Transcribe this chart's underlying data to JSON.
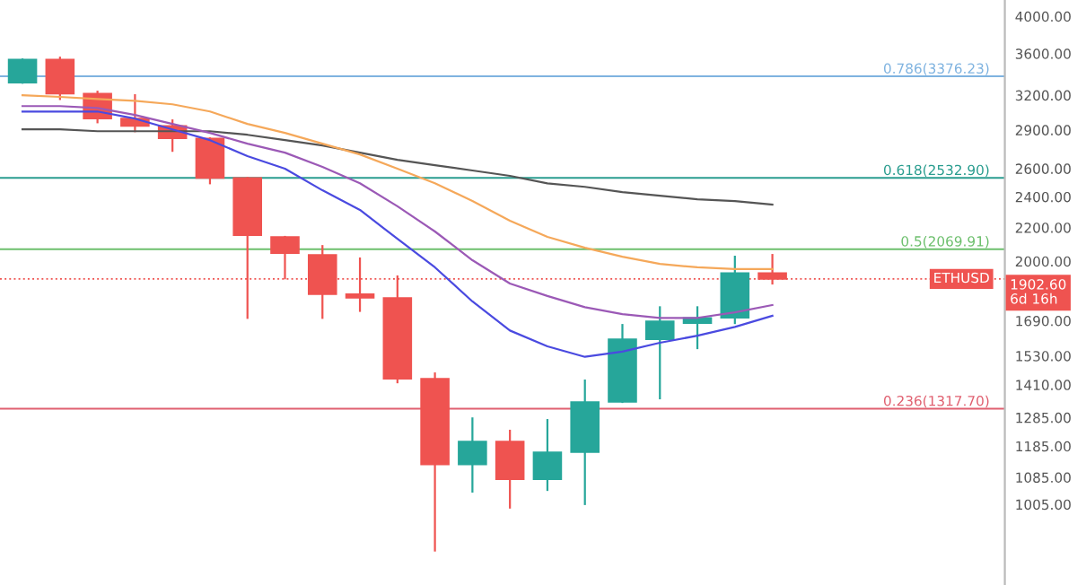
{
  "chart_data": {
    "type": "candlestick",
    "categories": [
      null,
      null,
      null,
      null,
      null,
      null,
      null,
      null,
      null,
      null,
      null,
      null,
      null,
      null,
      null,
      null,
      null,
      null,
      null,
      null,
      null
    ],
    "ohlc": [
      [
        3315,
        3541,
        3315,
        3541
      ],
      [
        3541,
        3559,
        3166,
        3215
      ],
      [
        3215,
        3232,
        2964,
        2995
      ],
      [
        2995,
        3200,
        2890,
        2934
      ],
      [
        2934,
        2980,
        2734,
        2832
      ],
      [
        2832,
        2832,
        2494,
        2532
      ],
      [
        2532,
        2532,
        1704,
        2153
      ],
      [
        2143,
        2143,
        1906,
        2047
      ],
      [
        2036,
        2088,
        1704,
        1822
      ],
      [
        1822,
        2016,
        1738,
        1803
      ],
      [
        1803,
        1916,
        1420,
        1434
      ],
      [
        1434,
        1456,
        882,
        1125
      ],
      [
        1125,
        1282,
        1042,
        1201
      ],
      [
        1201,
        1238,
        996,
        1079
      ],
      [
        1079,
        1276,
        1047,
        1165
      ],
      [
        1165,
        1427,
        1006,
        1343
      ],
      [
        1343,
        1670,
        1343,
        1604
      ],
      [
        1604,
        1756,
        1357,
        1688
      ],
      [
        1679,
        1756,
        1564,
        1704
      ],
      [
        1704,
        2026,
        1679,
        1934
      ],
      [
        1934,
        2036,
        1878,
        1902.6
      ]
    ],
    "colors": [
      "#26a69a",
      "#ef5350",
      "#ef5350",
      "#ef5350",
      "#ef5350",
      "#ef5350",
      "#ef5350",
      "#ef5350",
      "#ef5350",
      "#ef5350",
      "#ef5350",
      "#ef5350",
      "#26a69a",
      "#ef5350",
      "#26a69a",
      "#26a69a",
      "#26a69a",
      "#26a69a",
      "#26a69a",
      "#26a69a",
      "#ef5350"
    ],
    "series": [
      {
        "type": "line",
        "color": "#555555",
        "values": [
          2905,
          2905,
          2890,
          2890,
          2890,
          2890,
          2861,
          2818,
          2776,
          2720,
          2665,
          2625,
          2586,
          2547,
          2494,
          2469,
          2432,
          2408,
          2384,
          2372,
          2348
        ]
      },
      {
        "type": "line",
        "color": "#f5a85a",
        "values": [
          3200,
          3185,
          3166,
          3150,
          3119,
          3056,
          2950,
          2876,
          2790,
          2706,
          2599,
          2494,
          2372,
          2243,
          2143,
          2078,
          2026,
          1985,
          1966,
          1956,
          1956
        ]
      },
      {
        "type": "line",
        "color": "#9b59b6",
        "values": [
          3103,
          3103,
          3087,
          3026,
          2950,
          2876,
          2790,
          2720,
          2612,
          2494,
          2337,
          2176,
          2006,
          1878,
          1813,
          1756,
          1722,
          1704,
          1704,
          1731,
          1767
        ]
      },
      {
        "type": "line",
        "color": "#4a4ae0",
        "values": [
          3056,
          3056,
          3056,
          2995,
          2905,
          2818,
          2693,
          2599,
          2445,
          2313,
          2131,
          1966,
          1785,
          1644,
          1572,
          1526,
          1549,
          1588,
          1620,
          1661,
          1714
        ]
      }
    ],
    "log": true,
    "ylim": [
      800,
      4190
    ],
    "yticks": [
      {
        "value": 4000,
        "label": "4000.00"
      },
      {
        "value": 3600,
        "label": "3600.00"
      },
      {
        "value": 3200,
        "label": "3200.00"
      },
      {
        "value": 2900,
        "label": "2900.00"
      },
      {
        "value": 2600,
        "label": "2600.00"
      },
      {
        "value": 2400,
        "label": "2400.00"
      },
      {
        "value": 2200,
        "label": "2200.00"
      },
      {
        "value": 2000,
        "label": "2000.00"
      },
      {
        "value": 1690,
        "label": "1690.00"
      },
      {
        "value": 1530,
        "label": "1530.00"
      },
      {
        "value": 1410,
        "label": "1410.00"
      },
      {
        "value": 1285,
        "label": "1285.00"
      },
      {
        "value": 1185,
        "label": "1185.00"
      },
      {
        "value": 1085,
        "label": "1085.00"
      },
      {
        "value": 1005,
        "label": "1005.00"
      }
    ],
    "ref_lines": [
      {
        "axis": "y",
        "value": 3376.23,
        "label": "0.786(3376.23)",
        "color": "#7fb3e0",
        "line_style": "solid"
      },
      {
        "axis": "y",
        "value": 2532.9,
        "label": "0.618(2532.90)",
        "color": "#2a9d8f",
        "line_style": "solid"
      },
      {
        "axis": "y",
        "value": 2069.91,
        "label": "0.5(2069.91)",
        "color": "#6cbf6c",
        "line_style": "solid"
      },
      {
        "axis": "y",
        "value": 1902.6,
        "label": "ETHUSD",
        "color": "#ef5350",
        "line_style": "dotted"
      },
      {
        "axis": "y",
        "value": 1317.7,
        "label": "0.236(1317.70)",
        "color": "#e06070",
        "line_style": "solid"
      }
    ],
    "annotations": [
      "1902.60\n6d 16h"
    ],
    "grid": false
  }
}
